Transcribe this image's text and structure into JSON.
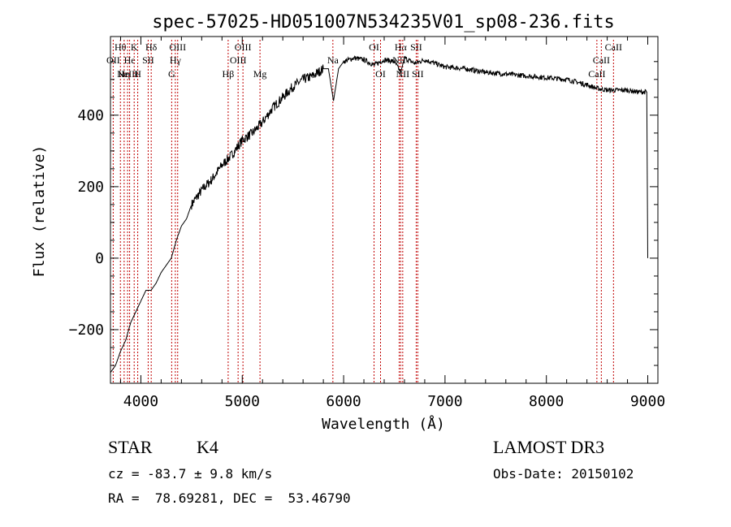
{
  "chart_data": {
    "type": "line",
    "title": "spec-57025-HD051007N534235V01_sp08-236.fits",
    "xlabel": "Wavelength (Å)",
    "ylabel": "Flux (relative)",
    "xlim": [
      3700,
      9100
    ],
    "ylim": [
      -350,
      620
    ],
    "xticks": [
      4000,
      5000,
      6000,
      7000,
      8000,
      9000
    ],
    "yticks": [
      -200,
      0,
      200,
      400
    ],
    "grid": false,
    "colors": {
      "spectrum": "#000000",
      "line_markers": "#c00000",
      "axes": "#000000"
    },
    "series": [
      {
        "x": [
          3700,
          3750,
          3800,
          3850,
          3900,
          3950,
          4000,
          4050,
          4100,
          4150,
          4200,
          4250,
          4300,
          4350,
          4400,
          4450,
          4500,
          4600,
          4700,
          4800,
          4900,
          5000,
          5100,
          5200,
          5300,
          5400,
          5500,
          5600,
          5700,
          5800,
          5850,
          5900,
          5950,
          6000,
          6100,
          6200,
          6300,
          6400,
          6500,
          6563,
          6600,
          6700,
          6800,
          7000,
          7200,
          7400,
          7600,
          7800,
          8000,
          8200,
          8400,
          8500,
          8600,
          8700,
          8800,
          8900,
          8990,
          9000
        ],
        "y": [
          -320,
          -300,
          -260,
          -230,
          -180,
          -150,
          -120,
          -90,
          -90,
          -70,
          -40,
          -20,
          0,
          50,
          90,
          110,
          150,
          190,
          220,
          260,
          290,
          330,
          350,
          380,
          420,
          450,
          480,
          500,
          510,
          530,
          530,
          440,
          530,
          550,
          560,
          555,
          540,
          555,
          550,
          520,
          560,
          545,
          555,
          535,
          530,
          520,
          515,
          510,
          505,
          500,
          485,
          475,
          470,
          470,
          470,
          465,
          465,
          0
        ]
      }
    ],
    "line_markers": [
      {
        "x": 3727,
        "label": "OII",
        "row": 2
      },
      {
        "x": 3798,
        "label": "Hθ",
        "row": 1
      },
      {
        "x": 3835,
        "label": "Hη",
        "row": 3
      },
      {
        "x": 3869,
        "label": "NeIII",
        "row": 3
      },
      {
        "x": 3889,
        "label": "He",
        "row": 2
      },
      {
        "x": 3934,
        "label": "K",
        "row": 1
      },
      {
        "x": 3969,
        "label": "H",
        "row": 3
      },
      {
        "x": 4072,
        "label": "SII",
        "row": 2
      },
      {
        "x": 4102,
        "label": "Hδ",
        "row": 1
      },
      {
        "x": 4304,
        "label": "G",
        "row": 3
      },
      {
        "x": 4340,
        "label": "Hγ",
        "row": 2
      },
      {
        "x": 4363,
        "label": "OIII",
        "row": 1
      },
      {
        "x": 4861,
        "label": "Hβ",
        "row": 3
      },
      {
        "x": 4959,
        "label": "OIII",
        "row": 2
      },
      {
        "x": 5007,
        "label": "OIII",
        "row": 1
      },
      {
        "x": 5175,
        "label": "Mg",
        "row": 3
      },
      {
        "x": 5894,
        "label": "Na",
        "row": 2
      },
      {
        "x": 6300,
        "label": "OI",
        "row": 1
      },
      {
        "x": 6364,
        "label": "OI",
        "row": 3
      },
      {
        "x": 6548,
        "label": "NII",
        "row": 2
      },
      {
        "x": 6563,
        "label": "Hα",
        "row": 1
      },
      {
        "x": 6583,
        "label": "NII",
        "row": 3
      },
      {
        "x": 6716,
        "label": "SII",
        "row": 1
      },
      {
        "x": 6731,
        "label": "SII",
        "row": 3
      },
      {
        "x": 8498,
        "label": "CaII",
        "row": 3
      },
      {
        "x": 8542,
        "label": "CaII",
        "row": 2
      },
      {
        "x": 8662,
        "label": "CaII",
        "row": 1
      }
    ]
  },
  "info": {
    "object_type": "STAR",
    "subclass": "K4",
    "survey": "LAMOST DR3",
    "redshift": "cz = -83.7 ± 9.8 km/s",
    "obs_date": "Obs-Date: 20150102",
    "coords": "RA =  78.69281, DEC =  53.46790"
  }
}
